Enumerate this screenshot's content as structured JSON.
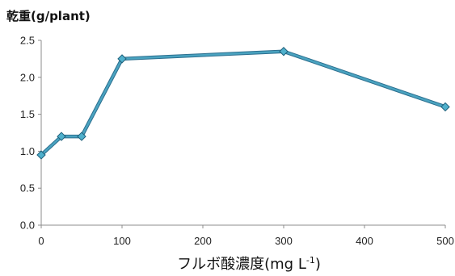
{
  "chart_data": {
    "type": "line",
    "title": "乾重(g/plant)",
    "xlabel": "フルボ酸濃度(mg L",
    "xlabel_superscript": "-1",
    "xlabel_suffix": ")",
    "ylabel": "",
    "x": [
      0,
      25,
      50,
      100,
      300,
      500
    ],
    "series": [
      {
        "values": [
          0.95,
          1.2,
          1.2,
          2.25,
          2.35,
          1.6
        ]
      }
    ],
    "xlim": [
      0,
      500
    ],
    "ylim": [
      0,
      2.5
    ],
    "xticks": [
      0,
      100,
      200,
      300,
      400,
      500
    ],
    "yticks": [
      0.0,
      0.5,
      1.0,
      1.5,
      2.0,
      2.5
    ],
    "ytick_labels": [
      "0.0",
      "0.5",
      "1.0",
      "1.5",
      "2.0",
      "2.5"
    ],
    "grid": false,
    "legend": "none",
    "colors": {
      "line": "#4aa3c0",
      "line_edge": "#2c6f8f",
      "marker": "#4fb0cc",
      "marker_edge": "#1f5f7a",
      "axis": "#8c8c8c"
    }
  }
}
